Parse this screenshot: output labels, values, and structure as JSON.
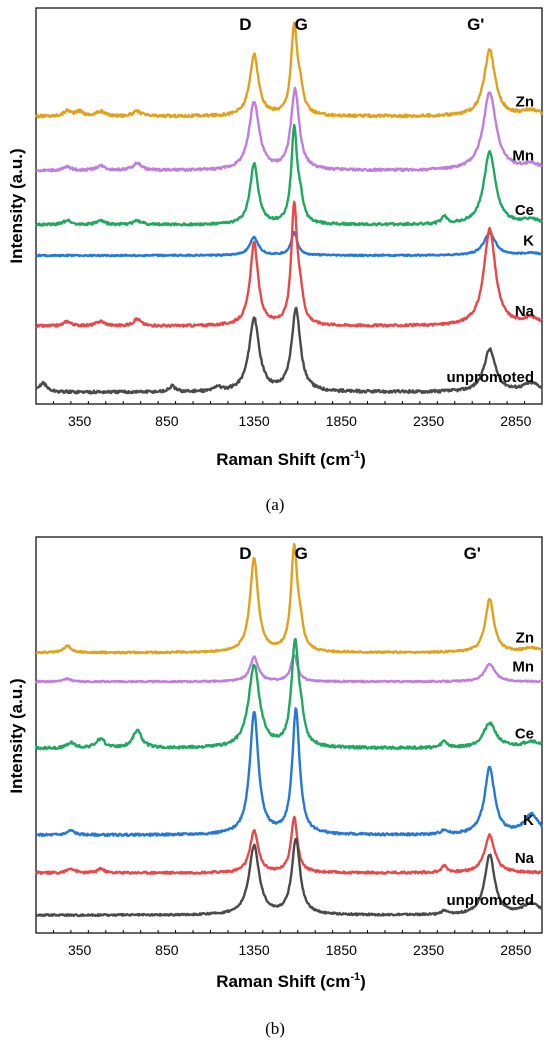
{
  "chart_data": [
    {
      "type": "line",
      "panel_caption": "(a)",
      "xlabel_text": "Raman Shift (cm",
      "xlabel_sup": "-1",
      "xlabel_tail": ")",
      "ylabel": "Intensity (a.u.)",
      "xlim": [
        100,
        3000
      ],
      "x_ticks": [
        350,
        850,
        1350,
        1850,
        2350,
        2850
      ],
      "peak_labels": [
        {
          "text": "D",
          "x": 1300
        },
        {
          "text": "G",
          "x": 1620
        },
        {
          "text": "G'",
          "x": 2620
        }
      ],
      "y_ticks_shown": false,
      "grid": false,
      "series": [
        {
          "name": "Zn",
          "color": "#e0a21c",
          "baseline": 6.1,
          "noise": 0.03,
          "peaks": [
            [
              1350,
              1.3,
              30
            ],
            [
              1580,
              1.85,
              22
            ],
            [
              1615,
              0.4,
              20
            ],
            [
              2700,
              1.4,
              38
            ],
            [
              2940,
              0.12,
              60
            ],
            [
              280,
              0.12,
              25
            ],
            [
              350,
              0.1,
              25
            ],
            [
              470,
              0.1,
              30
            ],
            [
              680,
              0.1,
              30
            ]
          ]
        },
        {
          "name": "Mn",
          "color": "#c07de0",
          "baseline": 4.95,
          "noise": 0.025,
          "peaks": [
            [
              1350,
              1.45,
              35
            ],
            [
              1585,
              1.7,
              28
            ],
            [
              2700,
              1.65,
              45
            ],
            [
              2940,
              0.12,
              60
            ],
            [
              280,
              0.08,
              25
            ],
            [
              470,
              0.1,
              30
            ],
            [
              680,
              0.15,
              30
            ]
          ]
        },
        {
          "name": "Ce",
          "color": "#20a860",
          "baseline": 3.8,
          "noise": 0.025,
          "peaks": [
            [
              1350,
              1.3,
              28
            ],
            [
              1580,
              2.0,
              20
            ],
            [
              1615,
              0.4,
              20
            ],
            [
              2700,
              1.55,
              40
            ],
            [
              2940,
              0.1,
              60
            ],
            [
              2440,
              0.15,
              20
            ],
            [
              280,
              0.1,
              25
            ],
            [
              470,
              0.08,
              30
            ],
            [
              680,
              0.08,
              30
            ]
          ]
        },
        {
          "name": "K",
          "color": "#2478d8",
          "baseline": 3.15,
          "noise": 0.015,
          "peaks": [
            [
              1350,
              0.38,
              30
            ],
            [
              1580,
              0.48,
              22
            ],
            [
              2700,
              0.48,
              40
            ],
            [
              2940,
              0.05,
              60
            ]
          ]
        },
        {
          "name": "Na",
          "color": "#e84848",
          "baseline": 1.65,
          "noise": 0.025,
          "peaks": [
            [
              1350,
              1.75,
              28
            ],
            [
              1580,
              2.5,
              20
            ],
            [
              1615,
              0.5,
              20
            ],
            [
              2700,
              2.05,
              40
            ],
            [
              2940,
              0.15,
              60
            ],
            [
              280,
              0.1,
              25
            ],
            [
              470,
              0.1,
              30
            ],
            [
              680,
              0.15,
              25
            ]
          ]
        },
        {
          "name": "unpromoted",
          "color": "#4a4a4a",
          "baseline": 0.25,
          "noise": 0.03,
          "peaks": [
            [
              1350,
              1.55,
              35
            ],
            [
              1590,
              1.75,
              30
            ],
            [
              2700,
              0.9,
              40
            ],
            [
              2940,
              0.18,
              60
            ],
            [
              140,
              0.2,
              25
            ],
            [
              880,
              0.12,
              20
            ],
            [
              1140,
              0.1,
              20
            ]
          ]
        }
      ]
    },
    {
      "type": "line",
      "panel_caption": "(b)",
      "xlabel_text": "Raman Shift (cm",
      "xlabel_sup": "-1",
      "xlabel_tail": ")",
      "ylabel": "Intensity (a.u.)",
      "xlim": [
        100,
        3000
      ],
      "x_ticks": [
        350,
        850,
        1350,
        1850,
        2350,
        2850
      ],
      "peak_labels": [
        {
          "text": "D",
          "x": 1300
        },
        {
          "text": "G",
          "x": 1620
        },
        {
          "text": "G'",
          "x": 2600
        }
      ],
      "y_ticks_shown": false,
      "grid": false,
      "series": [
        {
          "name": "Zn",
          "color": "#e0a21c",
          "baseline": 6.0,
          "noise": 0.02,
          "peaks": [
            [
              1350,
              2.1,
              28
            ],
            [
              1580,
              2.3,
              22
            ],
            [
              1615,
              0.4,
              20
            ],
            [
              2700,
              1.2,
              30
            ],
            [
              2940,
              0.1,
              60
            ],
            [
              280,
              0.15,
              25
            ]
          ]
        },
        {
          "name": "Mn",
          "color": "#c07de0",
          "baseline": 5.35,
          "noise": 0.015,
          "peaks": [
            [
              1350,
              0.55,
              28
            ],
            [
              1580,
              0.6,
              22
            ],
            [
              2700,
              0.4,
              35
            ],
            [
              280,
              0.06,
              25
            ]
          ]
        },
        {
          "name": "Ce",
          "color": "#20a860",
          "baseline": 3.85,
          "noise": 0.03,
          "peaks": [
            [
              1350,
              1.85,
              38
            ],
            [
              1585,
              2.3,
              25
            ],
            [
              1620,
              0.4,
              20
            ],
            [
              2700,
              0.55,
              45
            ],
            [
              2940,
              0.15,
              60
            ],
            [
              300,
              0.12,
              25
            ],
            [
              470,
              0.2,
              30
            ],
            [
              680,
              0.4,
              30
            ],
            [
              2440,
              0.15,
              20
            ]
          ]
        },
        {
          "name": "K",
          "color": "#2478d8",
          "baseline": 1.9,
          "noise": 0.025,
          "peaks": [
            [
              1350,
              2.75,
              30
            ],
            [
              1590,
              2.8,
              25
            ],
            [
              2700,
              1.5,
              35
            ],
            [
              2940,
              0.45,
              50
            ],
            [
              300,
              0.1,
              25
            ],
            [
              2440,
              0.1,
              20
            ]
          ]
        },
        {
          "name": "Na",
          "color": "#e84848",
          "baseline": 1.05,
          "noise": 0.025,
          "peaks": [
            [
              1350,
              0.95,
              28
            ],
            [
              1580,
              1.25,
              22
            ],
            [
              2700,
              0.85,
              35
            ],
            [
              2440,
              0.15,
              20
            ],
            [
              300,
              0.1,
              25
            ],
            [
              470,
              0.1,
              20
            ]
          ]
        },
        {
          "name": "unpromoted",
          "color": "#4a4a4a",
          "baseline": 0.1,
          "noise": 0.02,
          "peaks": [
            [
              1350,
              1.55,
              35
            ],
            [
              1590,
              1.7,
              28
            ],
            [
              2700,
              1.35,
              35
            ],
            [
              2940,
              0.25,
              60
            ],
            [
              2440,
              0.08,
              20
            ]
          ]
        }
      ]
    }
  ]
}
